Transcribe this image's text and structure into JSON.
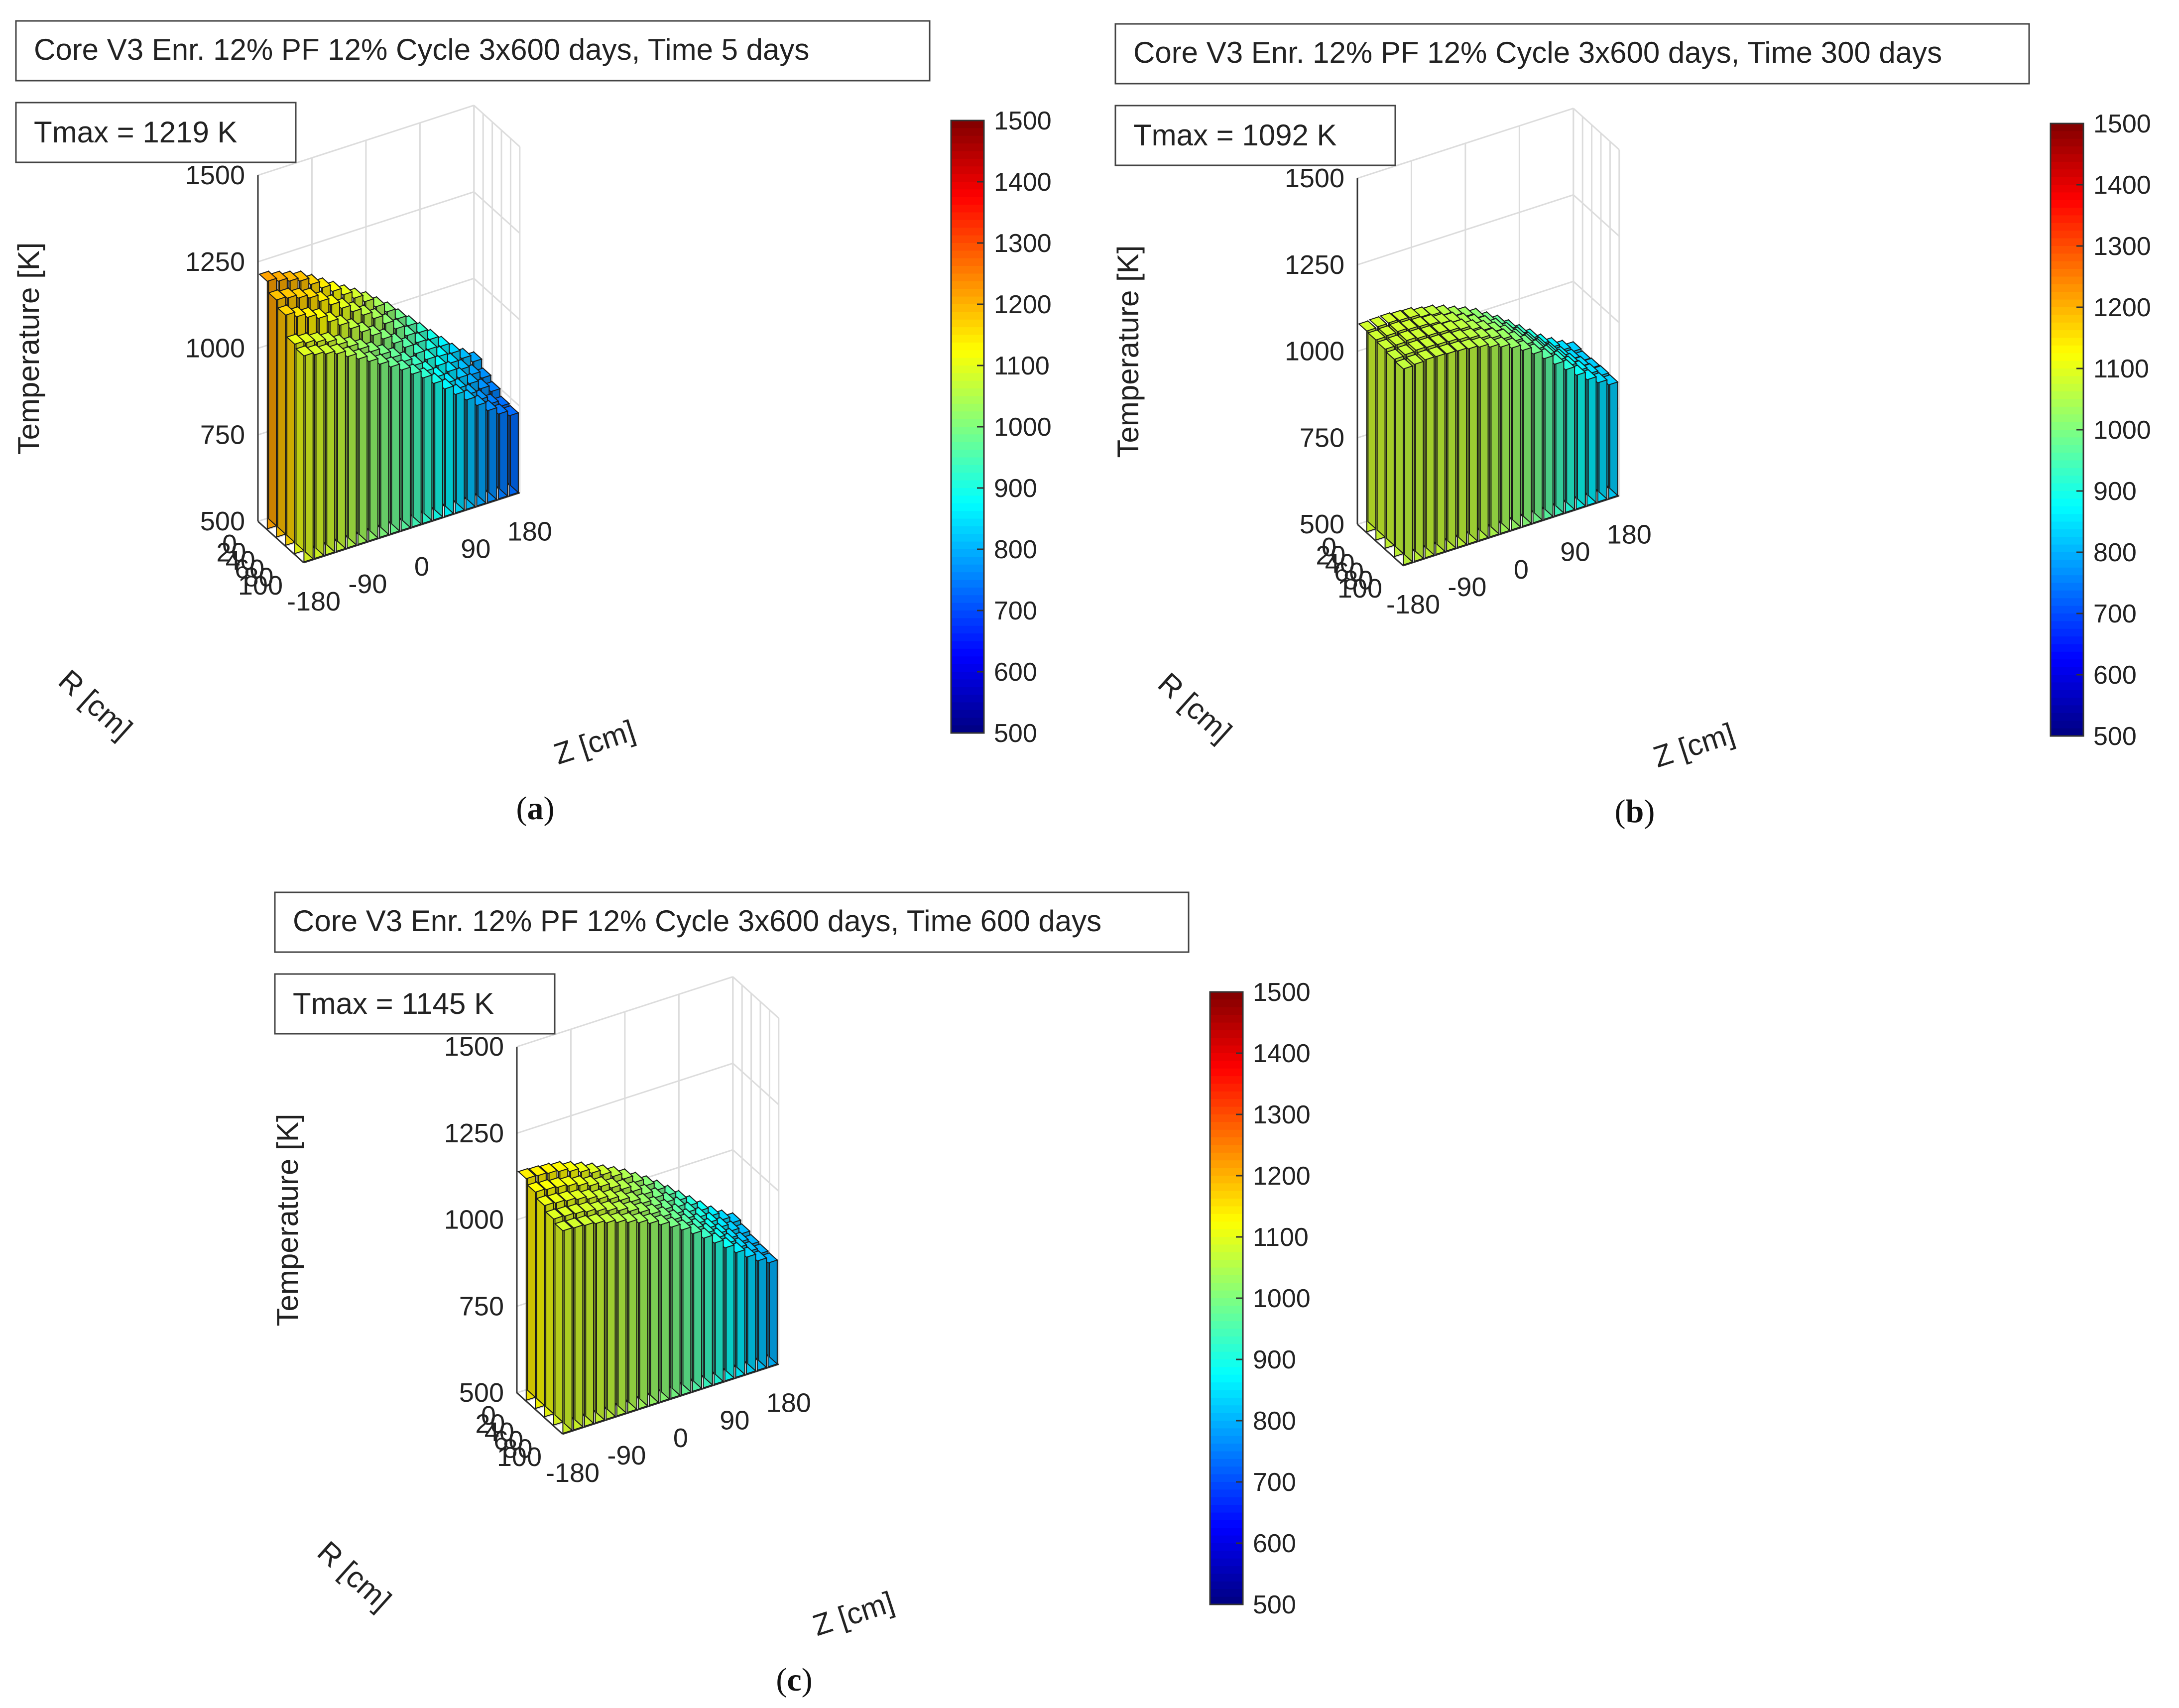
{
  "chart_data": [
    {
      "type": "bar3d",
      "panel_label": "(a)",
      "panel_letter": "a",
      "title": "Core V3 Enr. 12% PF 12% Cycle 3x600 days, Time 5 days",
      "annotation": "Tmax = 1219 K",
      "tmax_K": 1219,
      "zlabel": "Temperature [K]",
      "xlabel": "Z [cm]",
      "ylabel": "R [cm]",
      "zlim": [
        500,
        1500
      ],
      "z_ticks": [
        "500",
        "750",
        "1000",
        "1250",
        "1500"
      ],
      "x_ticks": [
        "-180",
        "-90",
        "0",
        "90",
        "180"
      ],
      "y_ticks": [
        "0",
        "20",
        "40",
        "60",
        "80",
        "100"
      ],
      "colorbar": {
        "min": 500,
        "max": 1500,
        "colormap": "jet",
        "ticks": [
          "500",
          "600",
          "700",
          "800",
          "900",
          "1000",
          "1100",
          "1200",
          "1300",
          "1400",
          "1500"
        ]
      },
      "grid": true,
      "z_centers_cm": [
        -171,
        -153,
        -135,
        -117,
        -99,
        -81,
        -63,
        -45,
        -27,
        -9,
        9,
        27,
        45,
        63,
        81,
        99,
        117,
        135,
        153,
        171
      ],
      "r_centers_cm": [
        10,
        30,
        50,
        70,
        90
      ],
      "temperature_K": [
        [
          1215,
          1205,
          1195,
          1185,
          1165,
          1145,
          1125,
          1105,
          1085,
          1065,
          1040,
          1015,
          985,
          955,
          925,
          895,
          865,
          835,
          810,
          790
        ],
        [
          1185,
          1180,
          1170,
          1160,
          1140,
          1120,
          1100,
          1080,
          1060,
          1040,
          1015,
          990,
          960,
          930,
          900,
          870,
          840,
          812,
          787,
          767
        ],
        [
          1165,
          1150,
          1138,
          1125,
          1105,
          1085,
          1065,
          1045,
          1025,
          1005,
          982,
          960,
          932,
          905,
          877,
          850,
          822,
          795,
          770,
          752
        ],
        [
          1105,
          1098,
          1090,
          1080,
          1063,
          1047,
          1030,
          1012,
          994,
          975,
          953,
          932,
          905,
          878,
          851,
          825,
          798,
          772,
          750,
          733
        ],
        [
          1095,
          1088,
          1080,
          1070,
          1052,
          1035,
          1018,
          1000,
          982,
          963,
          941,
          920,
          894,
          868,
          842,
          816,
          790,
          765,
          745,
          730
        ]
      ]
    },
    {
      "type": "bar3d",
      "panel_label": "(b)",
      "panel_letter": "b",
      "title": "Core V3 Enr. 12% PF 12% Cycle 3x600 days, Time 300 days",
      "annotation": "Tmax = 1092 K",
      "tmax_K": 1092,
      "zlabel": "Temperature [K]",
      "xlabel": "Z [cm]",
      "ylabel": "R [cm]",
      "zlim": [
        500,
        1500
      ],
      "z_ticks": [
        "500",
        "750",
        "1000",
        "1250",
        "1500"
      ],
      "x_ticks": [
        "-180",
        "-90",
        "0",
        "90",
        "180"
      ],
      "y_ticks": [
        "0",
        "20",
        "40",
        "60",
        "80",
        "100"
      ],
      "colorbar": {
        "min": 500,
        "max": 1500,
        "colormap": "jet",
        "ticks": [
          "500",
          "600",
          "700",
          "800",
          "900",
          "1000",
          "1100",
          "1200",
          "1300",
          "1400",
          "1500"
        ]
      },
      "grid": true,
      "z_centers_cm": [
        -171,
        -153,
        -135,
        -117,
        -99,
        -81,
        -63,
        -45,
        -27,
        -9,
        9,
        27,
        45,
        63,
        81,
        99,
        117,
        135,
        153,
        171
      ],
      "r_centers_cm": [
        10,
        30,
        50,
        70,
        90
      ],
      "temperature_K": [
        [
          1080,
          1082,
          1083,
          1080,
          1078,
          1070,
          1065,
          1055,
          1042,
          1030,
          1015,
          995,
          975,
          952,
          928,
          905,
          880,
          860,
          842,
          828
        ],
        [
          1078,
          1080,
          1082,
          1078,
          1076,
          1072,
          1065,
          1058,
          1045,
          1032,
          1018,
          1000,
          978,
          955,
          930,
          905,
          880,
          858,
          840,
          825
        ],
        [
          1075,
          1077,
          1080,
          1076,
          1074,
          1072,
          1068,
          1062,
          1050,
          1038,
          1024,
          1005,
          983,
          960,
          935,
          910,
          885,
          862,
          843,
          828
        ],
        [
          1070,
          1073,
          1076,
          1074,
          1072,
          1070,
          1066,
          1060,
          1050,
          1040,
          1027,
          1010,
          990,
          966,
          940,
          914,
          888,
          865,
          846,
          830
        ],
        [
          1066,
          1069,
          1072,
          1071,
          1069,
          1067,
          1063,
          1058,
          1048,
          1038,
          1025,
          1008,
          988,
          964,
          938,
          912,
          886,
          863,
          844,
          828
        ]
      ]
    },
    {
      "type": "bar3d",
      "panel_label": "(c)",
      "panel_letter": "c",
      "title": "Core V3 Enr. 12% PF 12% Cycle 3x600 days, Time 600 days",
      "annotation": "Tmax = 1145 K",
      "tmax_K": 1145,
      "zlabel": "Temperature [K]",
      "xlabel": "Z [cm]",
      "ylabel": "R [cm]",
      "zlim": [
        500,
        1500
      ],
      "z_ticks": [
        "500",
        "750",
        "1000",
        "1250",
        "1500"
      ],
      "x_ticks": [
        "-180",
        "-90",
        "0",
        "90",
        "180"
      ],
      "y_ticks": [
        "0",
        "20",
        "40",
        "60",
        "80",
        "100"
      ],
      "colorbar": {
        "min": 500,
        "max": 1500,
        "colormap": "jet",
        "ticks": [
          "500",
          "600",
          "700",
          "800",
          "900",
          "1000",
          "1100",
          "1200",
          "1300",
          "1400",
          "1500"
        ]
      },
      "grid": true,
      "z_centers_cm": [
        -171,
        -153,
        -135,
        -117,
        -99,
        -81,
        -63,
        -45,
        -27,
        -9,
        9,
        27,
        45,
        63,
        81,
        99,
        117,
        135,
        153,
        171
      ],
      "r_centers_cm": [
        10,
        30,
        50,
        70,
        90
      ],
      "temperature_K": [
        [
          1140,
          1138,
          1135,
          1130,
          1120,
          1108,
          1095,
          1080,
          1065,
          1048,
          1028,
          1008,
          985,
          960,
          935,
          910,
          885,
          860,
          838,
          820
        ],
        [
          1125,
          1122,
          1118,
          1112,
          1103,
          1092,
          1080,
          1066,
          1052,
          1036,
          1017,
          997,
          974,
          950,
          925,
          900,
          875,
          851,
          830,
          812
        ],
        [
          1110,
          1107,
          1103,
          1097,
          1088,
          1078,
          1067,
          1054,
          1040,
          1025,
          1006,
          987,
          964,
          940,
          916,
          892,
          867,
          843,
          822,
          805
        ],
        [
          1095,
          1093,
          1090,
          1085,
          1077,
          1068,
          1058,
          1046,
          1033,
          1018,
          1000,
          981,
          959,
          936,
          912,
          888,
          863,
          840,
          819,
          802
        ],
        [
          1085,
          1083,
          1080,
          1075,
          1067,
          1058,
          1048,
          1037,
          1025,
          1011,
          994,
          976,
          955,
          932,
          908,
          884,
          860,
          837,
          816,
          800
        ]
      ]
    }
  ]
}
